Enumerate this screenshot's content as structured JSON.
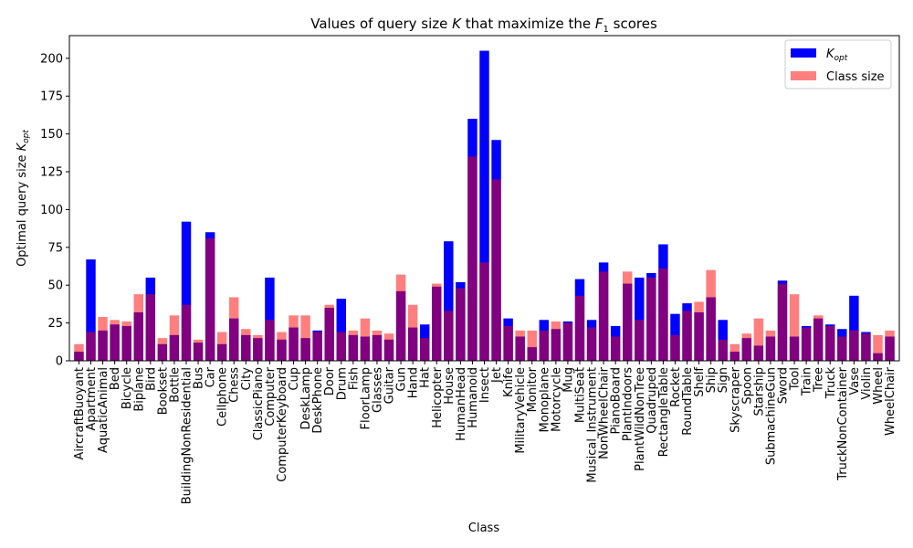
{
  "chart_data": {
    "type": "bar",
    "title": "Values of query size K that maximize the F1 scores",
    "title_parts": {
      "pre": "Values of query size ",
      "k": "K",
      "mid": " that maximize the ",
      "f": "F",
      "sub": "1",
      "post": " scores"
    },
    "xlabel": "Class",
    "ylabel": "Optimal query size",
    "ylabel_sym": {
      "base": "K",
      "sub": "opt"
    },
    "ylim": [
      0,
      215
    ],
    "yticks": [
      0,
      25,
      50,
      75,
      100,
      125,
      150,
      175,
      200
    ],
    "legend_position": "top-right",
    "categories": [
      "AircraftBuoyant",
      "Apartment",
      "AquaticAnimal",
      "Bed",
      "Bicycle",
      "Biplane",
      "Bird",
      "Bookset",
      "Bottle",
      "BuildingNonResidential",
      "Bus",
      "Car",
      "Cellphone",
      "Chess",
      "City",
      "ClassicPiano",
      "Computer",
      "ComputerKeyboard",
      "Cup",
      "DeskLamp",
      "DeskPhone",
      "Door",
      "Drum",
      "Fish",
      "FloorLamp",
      "Glasses",
      "Guitar",
      "Gun",
      "Hand",
      "Hat",
      "Helicopter",
      "House",
      "HumanHead",
      "Humanoid",
      "Insect",
      "Jet",
      "Knife",
      "MilitaryVehicle",
      "Monitor",
      "Monoplane",
      "Motorcycle",
      "Mug",
      "MultiSeat",
      "Musical_Instrument",
      "NonWheelChair",
      "PianoBoard",
      "PlantIndoors",
      "PlantWildNonTree",
      "Quadruped",
      "RectangleTable",
      "Rocket",
      "RoundTable",
      "Shelf",
      "Ship",
      "Sign",
      "Skyscraper",
      "Spoon",
      "Starship",
      "SubmachineGun",
      "Sword",
      "Tool",
      "Train",
      "Tree",
      "Truck",
      "TruckNonContainer",
      "Vase",
      "Violin",
      "Wheel",
      "WheelChair"
    ],
    "series": [
      {
        "name": "K_opt",
        "legend_sym": {
          "base": "K",
          "sub": "opt"
        },
        "color": "#0000ff",
        "values": [
          6,
          67,
          20,
          24,
          23,
          32,
          55,
          11,
          17,
          92,
          12,
          85,
          11,
          28,
          17,
          15,
          55,
          14,
          22,
          15,
          20,
          35,
          41,
          17,
          16,
          17,
          14,
          46,
          22,
          24,
          49,
          79,
          52,
          160,
          205,
          146,
          28,
          16,
          9,
          27,
          21,
          26,
          54,
          27,
          65,
          23,
          51,
          55,
          58,
          77,
          31,
          38,
          32,
          42,
          27,
          6,
          15,
          10,
          16,
          53,
          16,
          23,
          28,
          24,
          21,
          43,
          19,
          5,
          16
        ]
      },
      {
        "name": "Class size",
        "color": "#ff0000",
        "opacity": 0.5,
        "values": [
          11,
          19,
          29,
          27,
          26,
          44,
          44,
          15,
          30,
          37,
          14,
          81,
          19,
          42,
          21,
          17,
          27,
          19,
          30,
          30,
          19,
          37,
          19,
          20,
          28,
          20,
          18,
          57,
          37,
          15,
          51,
          33,
          48,
          135,
          65,
          120,
          23,
          20,
          20,
          20,
          26,
          25,
          43,
          22,
          59,
          16,
          59,
          27,
          55,
          61,
          17,
          33,
          39,
          60,
          14,
          11,
          18,
          28,
          20,
          51,
          44,
          22,
          30,
          23,
          16,
          20,
          18,
          17,
          20
        ]
      }
    ]
  }
}
